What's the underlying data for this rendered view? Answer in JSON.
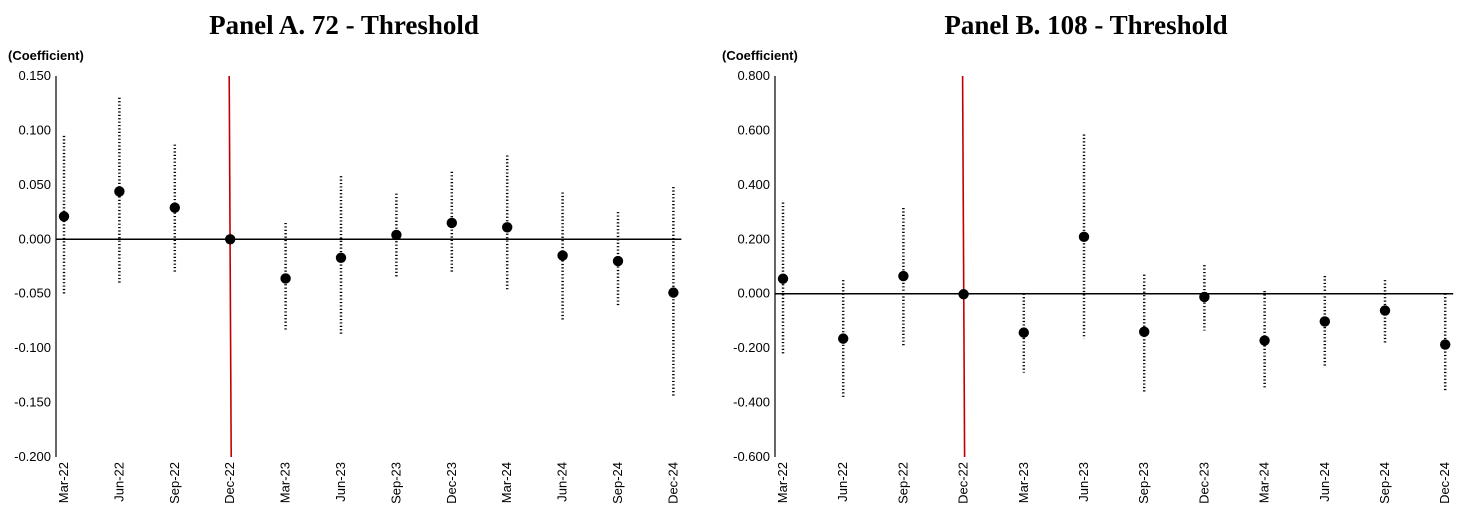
{
  "chart_data": [
    {
      "type": "scatter",
      "title": "Panel A. 72 - Threshold",
      "ylabel": "(Coefficient)",
      "xlabel": "",
      "categories": [
        "Mar-22",
        "Jun-22",
        "Sep-22",
        "Dec-22",
        "Mar-23",
        "Jun-23",
        "Sep-23",
        "Dec-23",
        "Mar-24",
        "Jun-24",
        "Sep-24",
        "Dec-24"
      ],
      "yticks": [
        "0.150",
        "0.100",
        "0.050",
        "0.000",
        "-0.050",
        "-0.100",
        "-0.150",
        "-0.200"
      ],
      "ylim": [
        -0.2,
        0.15
      ],
      "reference_line_category": "Dec-22",
      "series": [
        {
          "values": [
            0.021,
            0.044,
            0.029,
            0.0,
            -0.036,
            -0.017,
            0.004,
            0.015,
            0.011,
            -0.015,
            -0.02,
            -0.049
          ],
          "ci_lower": [
            -0.05,
            -0.04,
            -0.03,
            0.0,
            -0.083,
            -0.088,
            -0.035,
            -0.03,
            -0.048,
            -0.075,
            -0.062,
            -0.145
          ],
          "ci_upper": [
            0.095,
            0.13,
            0.087,
            0.0,
            0.015,
            0.058,
            0.042,
            0.062,
            0.077,
            0.043,
            0.025,
            0.048
          ]
        }
      ],
      "colors": {
        "points": "#000000",
        "ci": "#000000",
        "reference_line": "#c00000",
        "zero_line": "#000000"
      },
      "grid": false,
      "legend": "none"
    },
    {
      "type": "scatter",
      "title": "Panel B. 108 - Threshold",
      "ylabel": "(Coefficient)",
      "xlabel": "",
      "categories": [
        "Mar-22",
        "Jun-22",
        "Sep-22",
        "Dec-22",
        "Mar-23",
        "Jun-23",
        "Sep-23",
        "Dec-23",
        "Mar-24",
        "Jun-24",
        "Sep-24",
        "Dec-24"
      ],
      "yticks": [
        "0.800",
        "0.600",
        "0.400",
        "0.200",
        "0.000",
        "-0.200",
        "-0.400",
        "-0.600"
      ],
      "ylim": [
        -0.6,
        0.8
      ],
      "reference_line_category": "Dec-22",
      "series": [
        {
          "values": [
            0.055,
            -0.165,
            0.065,
            -0.002,
            -0.143,
            0.209,
            -0.14,
            -0.012,
            -0.172,
            -0.102,
            -0.062,
            -0.187
          ],
          "ci_lower": [
            -0.225,
            -0.38,
            -0.19,
            -0.002,
            -0.29,
            -0.165,
            -0.36,
            -0.135,
            -0.345,
            -0.265,
            -0.185,
            -0.36
          ],
          "ci_upper": [
            0.335,
            0.05,
            0.315,
            -0.002,
            0.0,
            0.585,
            0.07,
            0.105,
            0.01,
            0.065,
            0.05,
            0.0
          ]
        }
      ],
      "colors": {
        "points": "#000000",
        "ci": "#000000",
        "reference_line": "#c00000",
        "zero_line": "#000000"
      },
      "grid": false,
      "legend": "none"
    }
  ]
}
